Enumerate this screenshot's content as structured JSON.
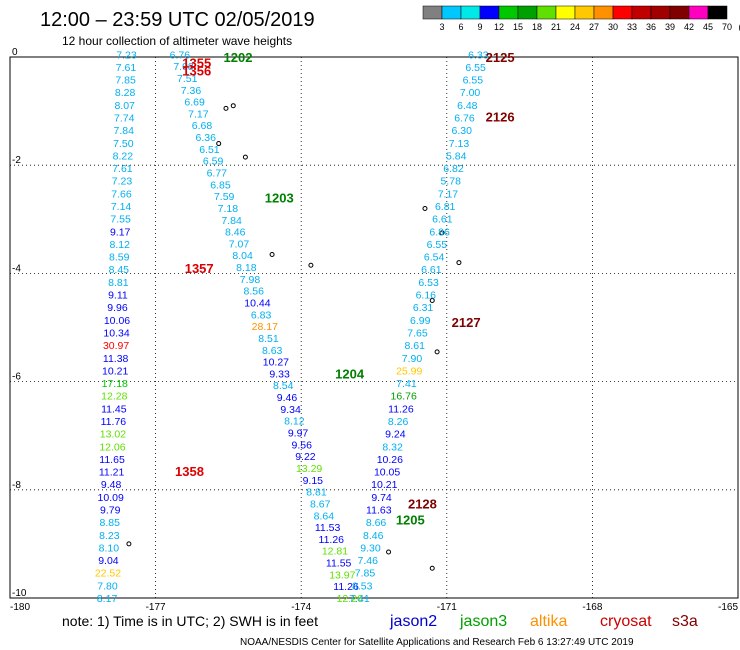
{
  "header": {
    "title": "12:00 – 23:59 UTC 02/05/2019",
    "subtitle": "12 hour collection of altimeter wave heights"
  },
  "color_scale": {
    "labels": [
      "3",
      "6",
      "9",
      "12",
      "15",
      "18",
      "21",
      "24",
      "27",
      "30",
      "33",
      "36",
      "39",
      "42",
      "45",
      "70",
      "(ft)"
    ],
    "colors": [
      "#808080",
      "#00c8ff",
      "#00e8e8",
      "#0000ff",
      "#00c800",
      "#00a000",
      "#60e000",
      "#ffff00",
      "#ffc800",
      "#ff9000",
      "#ff0000",
      "#c00000",
      "#a00000",
      "#800000",
      "#ff00c0",
      "#000000"
    ]
  },
  "axes": {
    "x_ticks": [
      "-180",
      "-177",
      "-174",
      "-171",
      "-168",
      "-165"
    ],
    "y_ticks": [
      "0",
      "-2",
      "-4",
      "-6",
      "-8",
      "-10"
    ]
  },
  "footer": {
    "note": "note:  1) Time is in UTC; 2) SWH is in feet",
    "credit": "NOAA/NESDIS Center for Satellite Applications and Research    Feb  6 13:27:49 UTC 2019",
    "legend": [
      {
        "label": "jason2",
        "color": "#0000cc"
      },
      {
        "label": "jason3",
        "color": "#00a000"
      },
      {
        "label": "altika",
        "color": "#ff9000"
      },
      {
        "label": "cryosat",
        "color": "#cc0000"
      },
      {
        "label": "s3a",
        "color": "#800000"
      }
    ]
  },
  "time_labels": [
    {
      "text": "1355",
      "lon": -176.45,
      "lat": -0.1,
      "color": "#dd0000"
    },
    {
      "text": "1356",
      "lon": -176.45,
      "lat": -0.25,
      "color": "#dd0000"
    },
    {
      "text": "1202",
      "lon": -175.6,
      "lat": 0.0,
      "color": "#008000"
    },
    {
      "text": "1203",
      "lon": -174.75,
      "lat": -2.6,
      "color": "#008000"
    },
    {
      "text": "1357",
      "lon": -176.4,
      "lat": -3.9,
      "color": "#dd0000"
    },
    {
      "text": "1204",
      "lon": -173.3,
      "lat": -5.85,
      "color": "#008000"
    },
    {
      "text": "1358",
      "lon": -176.6,
      "lat": -7.65,
      "color": "#dd0000"
    },
    {
      "text": "1205",
      "lon": -172.05,
      "lat": -8.55,
      "color": "#008000"
    },
    {
      "text": "2125",
      "lon": -170.2,
      "lat": 0.0,
      "color": "#800000"
    },
    {
      "text": "2126",
      "lon": -170.2,
      "lat": -1.1,
      "color": "#800000"
    },
    {
      "text": "2127",
      "lon": -170.9,
      "lat": -4.9,
      "color": "#800000"
    },
    {
      "text": "2128",
      "lon": -171.8,
      "lat": -8.25,
      "color": "#800000"
    }
  ],
  "islands": [
    [
      -175.4,
      -0.9
    ],
    [
      -175.55,
      -0.95
    ],
    [
      -175.7,
      -1.6
    ],
    [
      -175.15,
      -1.85
    ],
    [
      -174.6,
      -3.65
    ],
    [
      -173.8,
      -3.85
    ],
    [
      -171.45,
      -2.8
    ],
    [
      -171.1,
      -3.25
    ],
    [
      -170.75,
      -3.8
    ],
    [
      -171.3,
      -4.5
    ],
    [
      -171.2,
      -5.45
    ],
    [
      -172.2,
      -9.15
    ],
    [
      -171.3,
      -9.45
    ],
    [
      -177.55,
      -9.0
    ]
  ],
  "tracks": [
    {
      "satellite": "cryosat",
      "color_default": "#00b0f0",
      "start": [
        -177.6,
        0.05
      ],
      "end": [
        -178.0,
        -10.0
      ],
      "values": [
        "7.23",
        "7.61",
        "7.85",
        "8.28",
        "8.07",
        "7.74",
        "7.84",
        "7.50",
        "8.22",
        "7.61",
        "7.23",
        "7.66",
        "7.14",
        "7.55",
        "9.17",
        "8.12",
        "8.59",
        "8.45",
        "8.81",
        "9.11",
        "9.96",
        "10.06",
        "10.34",
        "30.97",
        "11.38",
        "10.21",
        "17.18",
        "12.28",
        "11.45",
        "11.76",
        "13.02",
        "12.06",
        "11.65",
        "11.21",
        "9.48",
        "10.09",
        "9.79",
        "8.85",
        "8.23",
        "8.10",
        "9.04",
        "22.52",
        "7.80",
        "8.17"
      ],
      "colors": {
        "30.97": "#ff0000",
        "17.18": "#00c800",
        "12.28": "#60e000",
        "13.02": "#60e000",
        "12.06": "#60e000",
        "22.52": "#ffc800",
        "9.17": "#0000ff",
        "9.11": "#0000ff",
        "9.96": "#0000ff",
        "10.06": "#0000ff",
        "10.34": "#0000ff",
        "11.38": "#0000ff",
        "10.21": "#0000ff",
        "11.45": "#0000ff",
        "11.76": "#0000ff",
        "11.65": "#0000ff",
        "11.21": "#0000ff",
        "9.48": "#0000ff",
        "10.09": "#0000ff",
        "9.79": "#0000ff",
        "9.04": "#0000ff"
      }
    },
    {
      "satellite": "jason3",
      "color_default": "#00b0f0",
      "start": [
        -176.5,
        0.05
      ],
      "end": [
        -173.0,
        -10.0
      ],
      "values": [
        "6.76",
        "7.08",
        "7.51",
        "7.36",
        "6.69",
        "7.17",
        "6.68",
        "6.36",
        "6.51",
        "6.59",
        "6.77",
        "6.85",
        "7.59",
        "7.18",
        "7.84",
        "8.46",
        "7.07",
        "8.04",
        "8.18",
        "7.98",
        "8.56",
        "10.44",
        "6.83",
        "28.17",
        "8.51",
        "8.63",
        "10.27",
        "9.33",
        "8.54",
        "9.46",
        "9.34",
        "8.12",
        "9.97",
        "9.56",
        "9.22",
        "13.29",
        "9.15",
        "8.81",
        "8.67",
        "8.64",
        "11.53",
        "11.26",
        "12.81",
        "11.55",
        "13.97",
        "11.26",
        "12.26"
      ],
      "colors": {
        "10.44": "#0000ff",
        "28.17": "#ff9000",
        "10.27": "#0000ff",
        "9.33": "#0000ff",
        "9.46": "#0000ff",
        "9.34": "#0000ff",
        "9.97": "#0000ff",
        "9.56": "#0000ff",
        "9.22": "#0000ff",
        "13.29": "#60e000",
        "9.15": "#0000ff",
        "11.53": "#0000ff",
        "11.26": "#0000ff",
        "12.81": "#60e000",
        "11.55": "#0000ff",
        "13.97": "#60e000",
        "12.26": "#60e000"
      }
    },
    {
      "satellite": "s3a",
      "color_default": "#00b0f0",
      "start": [
        -170.35,
        0.05
      ],
      "end": [
        -172.8,
        -10.0
      ],
      "values": [
        "6.33",
        "6.55",
        "6.55",
        "7.00",
        "6.48",
        "6.76",
        "6.30",
        "7.13",
        "5.84",
        "6.82",
        "5.78",
        "7.17",
        "6.81",
        "6.61",
        "6.86",
        "6.55",
        "6.54",
        "6.61",
        "6.53",
        "6.16",
        "6.31",
        "6.99",
        "7.65",
        "8.61",
        "7.90",
        "25.99",
        "7.41",
        "16.76",
        "11.26",
        "8.26",
        "9.24",
        "8.32",
        "10.26",
        "10.05",
        "10.21",
        "9.74",
        "11.63",
        "8.66",
        "8.46",
        "9.30",
        "7.46",
        "7.85",
        "8.53",
        "7.41"
      ],
      "colors": {
        "25.99": "#ffc800",
        "16.76": "#00a000",
        "11.26": "#0000ff",
        "9.24": "#0000ff",
        "10.26": "#0000ff",
        "10.05": "#0000ff",
        "10.21": "#0000ff",
        "9.74": "#0000ff",
        "11.63": "#0000ff"
      }
    }
  ]
}
